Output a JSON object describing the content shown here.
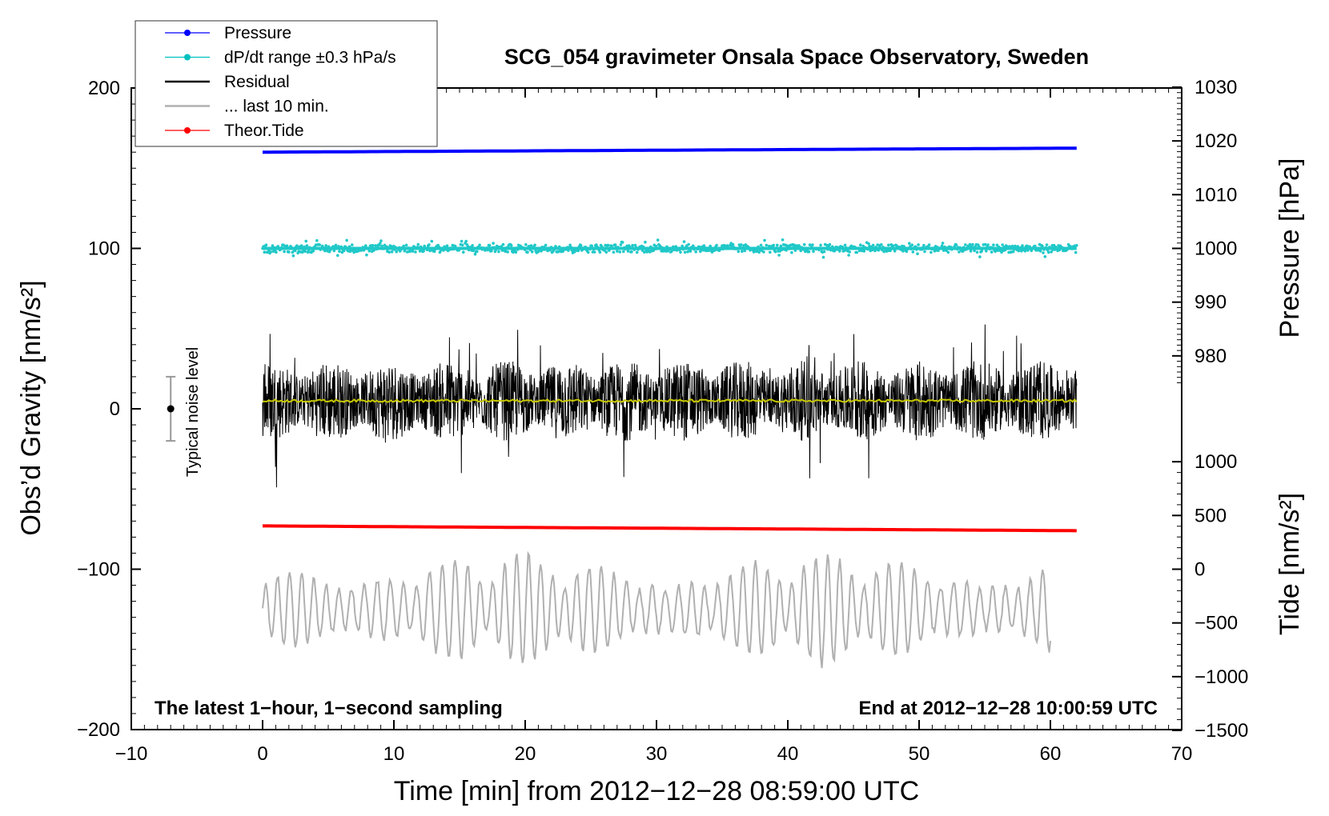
{
  "chart_data": {
    "type": "line",
    "title": "SCG_054 gravimeter Onsala Space Observatory, Sweden",
    "xlabel": "Time [min] from 2012−12−28 08:59:00 UTC",
    "ylabel_left": "Obs’d Gravity [nm/s²]",
    "ylabel_right_pressure": "Pressure [hPa]",
    "ylabel_right_tide": "Tide [nm/s²]",
    "xlim": [
      -10,
      70
    ],
    "ylim": [
      -200,
      200
    ],
    "x_ticks": [
      "−10",
      "0",
      "10",
      "20",
      "30",
      "40",
      "50",
      "60",
      "70"
    ],
    "y_ticks_left": [
      "200",
      "100",
      "0",
      "−100",
      "−200"
    ],
    "pressure_ticks": [
      "1030",
      "1020",
      "1010",
      "1000",
      "990",
      "980"
    ],
    "tide_ticks": [
      "1000",
      "500",
      "0",
      "−500",
      "−1000",
      "−1500"
    ],
    "note_left": "The latest 1−hour, 1−second sampling",
    "note_right": "End at 2012−12−28 10:00:59 UTC",
    "noise_label": "Typical noise level",
    "noise_bar": {
      "x": -7,
      "center": 0,
      "half_range": 20
    },
    "legend": [
      {
        "label": "Pressure",
        "color": "#0000ff",
        "marker": true
      },
      {
        "label": "dP/dt range ±0.3 hPa/s",
        "color": "#00c0c0",
        "marker": true
      },
      {
        "label": "Residual",
        "color": "#000000",
        "marker": false
      },
      {
        "label": "... last 10 min.",
        "color": "#b0b0b0",
        "marker": false
      },
      {
        "label": "Theor.Tide",
        "color": "#ff0000",
        "marker": true
      }
    ],
    "series": [
      {
        "name": "Pressure",
        "color": "#0000ff",
        "x_range": [
          0,
          62
        ],
        "start": 160,
        "end": 162.5
      },
      {
        "name": "dP/dt range",
        "color": "#20c8c8",
        "x_range": [
          0,
          62
        ],
        "center": 100,
        "spread": 5
      },
      {
        "name": "Residual",
        "color": "#000000",
        "x_range": [
          0,
          62
        ],
        "center": 5,
        "amplitude": 25
      },
      {
        "name": "Residual mean",
        "color": "#c8c800",
        "x_range": [
          0,
          62
        ],
        "center": 5
      },
      {
        "name": "Theor.Tide",
        "color": "#ff0000",
        "x_range": [
          0,
          62
        ],
        "start": -73,
        "end": -76
      },
      {
        "name": "last 10 min.",
        "color": "#b0b0b0",
        "x_range": [
          0,
          60
        ],
        "center": -125,
        "amplitude": 35
      }
    ]
  }
}
